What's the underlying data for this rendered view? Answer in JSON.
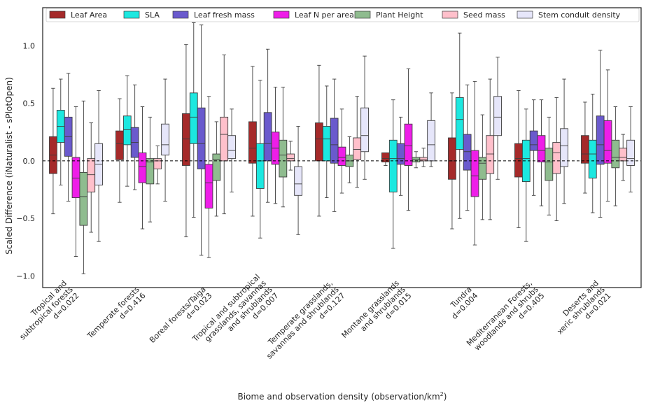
{
  "chart_data": {
    "type": "boxplot",
    "title": "",
    "xlabel": "Biome and observation density (observation/km",
    "xlabel_sup": "2",
    "xlabel_end": ")",
    "ylabel": "Scaled Difference (iNaturalist - sPlotOpen)",
    "ylim": [
      -1.1,
      1.33
    ],
    "yticks": [
      -1.0,
      -0.5,
      0.0,
      0.5,
      1.0
    ],
    "ytick_labels": [
      "−1.0",
      "−0.5",
      "0.0",
      "0.5",
      "1.0"
    ],
    "reference_line": 0.0,
    "legend_position": "top",
    "series": [
      {
        "name": "Leaf Area",
        "color": "#a52a2a"
      },
      {
        "name": "SLA",
        "color": "#1ce8e0"
      },
      {
        "name": "Leaf fresh mass",
        "color": "#6a5acd"
      },
      {
        "name": "Leaf N per area",
        "color": "#ee1ee8"
      },
      {
        "name": "Plant Height",
        "color": "#8fbc8f"
      },
      {
        "name": "Seed mass",
        "color": "#ffc0cb"
      },
      {
        "name": "Stem conduit density",
        "color": "#e6e6fa"
      }
    ],
    "categories": [
      {
        "lines": [
          "Tropical and",
          "subtropical forests",
          "d=0.022"
        ]
      },
      {
        "lines": [
          "Temperate forests",
          "d=0.416"
        ]
      },
      {
        "lines": [
          "Boreal forests/Taiga",
          "d=0.023"
        ]
      },
      {
        "lines": [
          "Tropical and subtropical",
          "grasslands, savannas",
          "and shrublands",
          "d=0.007"
        ]
      },
      {
        "lines": [
          "Temperate grasslands,",
          "savannas and shrublands",
          "d=0.127"
        ]
      },
      {
        "lines": [
          "Montane grasslands",
          "and shrublands",
          "d=0.015"
        ]
      },
      {
        "lines": [
          "Tundra",
          "d=0.004"
        ]
      },
      {
        "lines": [
          "Mediterranean Forests,",
          "woodlands and shrubs",
          "d=0.405"
        ]
      },
      {
        "lines": [
          "Deserts and",
          "xeric shrublands",
          "d=0.021"
        ]
      }
    ],
    "boxes": [
      [
        {
          "wl": -0.46,
          "q1": -0.11,
          "med": 0.05,
          "q3": 0.21,
          "wh": 0.63
        },
        {
          "wl": -0.21,
          "q1": 0.16,
          "med": 0.3,
          "q3": 0.44,
          "wh": 0.71
        },
        {
          "wl": -0.35,
          "q1": 0.04,
          "med": 0.21,
          "q3": 0.38,
          "wh": 0.76
        },
        {
          "wl": -0.83,
          "q1": -0.32,
          "med": -0.15,
          "q3": 0.03,
          "wh": 0.47
        },
        {
          "wl": -0.98,
          "q1": -0.56,
          "med": -0.31,
          "q3": -0.1,
          "wh": 0.52
        },
        {
          "wl": -0.62,
          "q1": -0.27,
          "med": -0.12,
          "q3": 0.02,
          "wh": 0.33
        },
        {
          "wl": -0.7,
          "q1": -0.21,
          "med": -0.03,
          "q3": 0.15,
          "wh": 0.61
        }
      ],
      [
        {
          "wl": -0.36,
          "q1": 0.01,
          "med": 0.15,
          "q3": 0.26,
          "wh": 0.54
        },
        {
          "wl": -0.22,
          "q1": 0.14,
          "med": 0.27,
          "q3": 0.39,
          "wh": 0.74
        },
        {
          "wl": -0.25,
          "q1": 0.03,
          "med": 0.16,
          "q3": 0.29,
          "wh": 0.66
        },
        {
          "wl": -0.59,
          "q1": -0.19,
          "med": -0.05,
          "q3": 0.07,
          "wh": 0.47
        },
        {
          "wl": -0.53,
          "q1": -0.2,
          "med": -0.01,
          "q3": 0.02,
          "wh": 0.38
        },
        {
          "wl": -0.2,
          "q1": -0.07,
          "med": 0.0,
          "q3": 0.02,
          "wh": 0.13
        },
        {
          "wl": -0.35,
          "q1": 0.05,
          "med": 0.14,
          "q3": 0.32,
          "wh": 0.71
        }
      ],
      [
        {
          "wl": -0.66,
          "q1": -0.04,
          "med": 0.19,
          "q3": 0.41,
          "wh": 1.01
        },
        {
          "wl": -0.49,
          "q1": 0.15,
          "med": 0.38,
          "q3": 0.59,
          "wh": 1.2
        },
        {
          "wl": -0.82,
          "q1": -0.07,
          "med": 0.15,
          "q3": 0.46,
          "wh": 1.18
        },
        {
          "wl": -0.84,
          "q1": -0.41,
          "med": -0.19,
          "q3": -0.03,
          "wh": 0.56
        },
        {
          "wl": -0.48,
          "q1": -0.17,
          "med": 0.01,
          "q3": 0.06,
          "wh": 0.34
        },
        {
          "wl": -0.46,
          "q1": 0.0,
          "med": 0.23,
          "q3": 0.38,
          "wh": 0.92
        },
        {
          "wl": -0.27,
          "q1": 0.02,
          "med": 0.09,
          "q3": 0.22,
          "wh": 0.45
        }
      ],
      [
        {
          "wl": -0.48,
          "q1": -0.02,
          "med": 0.11,
          "q3": 0.34,
          "wh": 0.82
        },
        {
          "wl": -0.67,
          "q1": -0.24,
          "med": 0.0,
          "q3": 0.15,
          "wh": 0.7
        },
        {
          "wl": -0.36,
          "q1": 0.0,
          "med": 0.15,
          "q3": 0.42,
          "wh": 0.97
        },
        {
          "wl": -0.37,
          "q1": -0.03,
          "med": 0.11,
          "q3": 0.25,
          "wh": 0.64
        },
        {
          "wl": -0.4,
          "q1": -0.14,
          "med": 0.05,
          "q3": 0.18,
          "wh": 0.64
        },
        {
          "wl": -0.08,
          "q1": 0.0,
          "med": 0.02,
          "q3": 0.06,
          "wh": 0.17
        },
        {
          "wl": -0.64,
          "q1": -0.3,
          "med": -0.2,
          "q3": -0.05,
          "wh": 0.3
        }
      ],
      [
        {
          "wl": -0.48,
          "q1": 0.0,
          "med": 0.19,
          "q3": 0.33,
          "wh": 0.83
        },
        {
          "wl": -0.32,
          "q1": 0.0,
          "med": 0.19,
          "q3": 0.3,
          "wh": 0.65
        },
        {
          "wl": -0.44,
          "q1": -0.02,
          "med": 0.14,
          "q3": 0.37,
          "wh": 0.71
        },
        {
          "wl": -0.28,
          "q1": -0.04,
          "med": 0.03,
          "q3": 0.12,
          "wh": 0.45
        },
        {
          "wl": -0.19,
          "q1": -0.05,
          "med": 0.0,
          "q3": 0.05,
          "wh": 0.21
        },
        {
          "wl": -0.23,
          "q1": 0.01,
          "med": 0.1,
          "q3": 0.2,
          "wh": 0.56
        },
        {
          "wl": -0.16,
          "q1": 0.08,
          "med": 0.22,
          "q3": 0.46,
          "wh": 0.91
        }
      ],
      [
        {
          "wl": -0.04,
          "q1": -0.01,
          "med": 0.02,
          "q3": 0.07,
          "wh": 0.07
        },
        {
          "wl": -0.76,
          "q1": -0.27,
          "med": 0.02,
          "q3": 0.18,
          "wh": 0.53
        },
        {
          "wl": -0.3,
          "q1": -0.03,
          "med": 0.02,
          "q3": 0.15,
          "wh": 0.38
        },
        {
          "wl": -0.43,
          "q1": -0.04,
          "med": 0.13,
          "q3": 0.32,
          "wh": 0.8
        },
        {
          "wl": -0.06,
          "q1": -0.01,
          "med": 0.01,
          "q3": 0.03,
          "wh": 0.08
        },
        {
          "wl": -0.05,
          "q1": 0.0,
          "med": 0.01,
          "q3": 0.03,
          "wh": 0.11
        },
        {
          "wl": -0.05,
          "q1": 0.0,
          "med": 0.14,
          "q3": 0.35,
          "wh": 0.59
        }
      ],
      [
        {
          "wl": -0.59,
          "q1": -0.16,
          "med": 0.0,
          "q3": 0.2,
          "wh": 0.59
        },
        {
          "wl": -0.5,
          "q1": 0.1,
          "med": 0.36,
          "q3": 0.55,
          "wh": 1.11
        },
        {
          "wl": -0.43,
          "q1": -0.08,
          "med": 0.08,
          "q3": 0.23,
          "wh": 0.66
        },
        {
          "wl": -0.73,
          "q1": -0.31,
          "med": -0.13,
          "q3": 0.09,
          "wh": 0.69
        },
        {
          "wl": -0.51,
          "q1": -0.16,
          "med": -0.02,
          "q3": 0.03,
          "wh": 0.4
        },
        {
          "wl": -0.51,
          "q1": -0.11,
          "med": 0.06,
          "q3": 0.22,
          "wh": 0.71
        },
        {
          "wl": -0.16,
          "q1": 0.22,
          "med": 0.38,
          "q3": 0.56,
          "wh": 0.9
        }
      ],
      [
        {
          "wl": -0.58,
          "q1": -0.14,
          "med": 0.02,
          "q3": 0.15,
          "wh": 0.61
        },
        {
          "wl": -0.7,
          "q1": -0.18,
          "med": 0.02,
          "q3": 0.18,
          "wh": 0.45
        },
        {
          "wl": -0.3,
          "q1": 0.09,
          "med": 0.14,
          "q3": 0.26,
          "wh": 0.53
        },
        {
          "wl": -0.39,
          "q1": -0.01,
          "med": 0.09,
          "q3": 0.22,
          "wh": 0.53
        },
        {
          "wl": -0.47,
          "q1": -0.17,
          "med": -0.01,
          "q3": 0.11,
          "wh": 0.38
        },
        {
          "wl": -0.52,
          "q1": -0.11,
          "med": 0.07,
          "q3": 0.16,
          "wh": 0.55
        },
        {
          "wl": -0.37,
          "q1": -0.05,
          "med": 0.13,
          "q3": 0.28,
          "wh": 0.71
        }
      ],
      [
        {
          "wl": -0.28,
          "q1": -0.02,
          "med": 0.06,
          "q3": 0.22,
          "wh": 0.51
        },
        {
          "wl": -0.45,
          "q1": -0.15,
          "med": 0.06,
          "q3": 0.18,
          "wh": 0.58
        },
        {
          "wl": -0.49,
          "q1": -0.03,
          "med": 0.14,
          "q3": 0.39,
          "wh": 0.96
        },
        {
          "wl": -0.35,
          "q1": -0.02,
          "med": 0.09,
          "q3": 0.35,
          "wh": 0.79
        },
        {
          "wl": -0.39,
          "q1": -0.06,
          "med": 0.03,
          "q3": 0.18,
          "wh": 0.47
        },
        {
          "wl": -0.17,
          "q1": 0.0,
          "med": 0.03,
          "q3": 0.11,
          "wh": 0.23
        },
        {
          "wl": -0.27,
          "q1": -0.04,
          "med": 0.02,
          "q3": 0.18,
          "wh": 0.47
        }
      ]
    ]
  }
}
